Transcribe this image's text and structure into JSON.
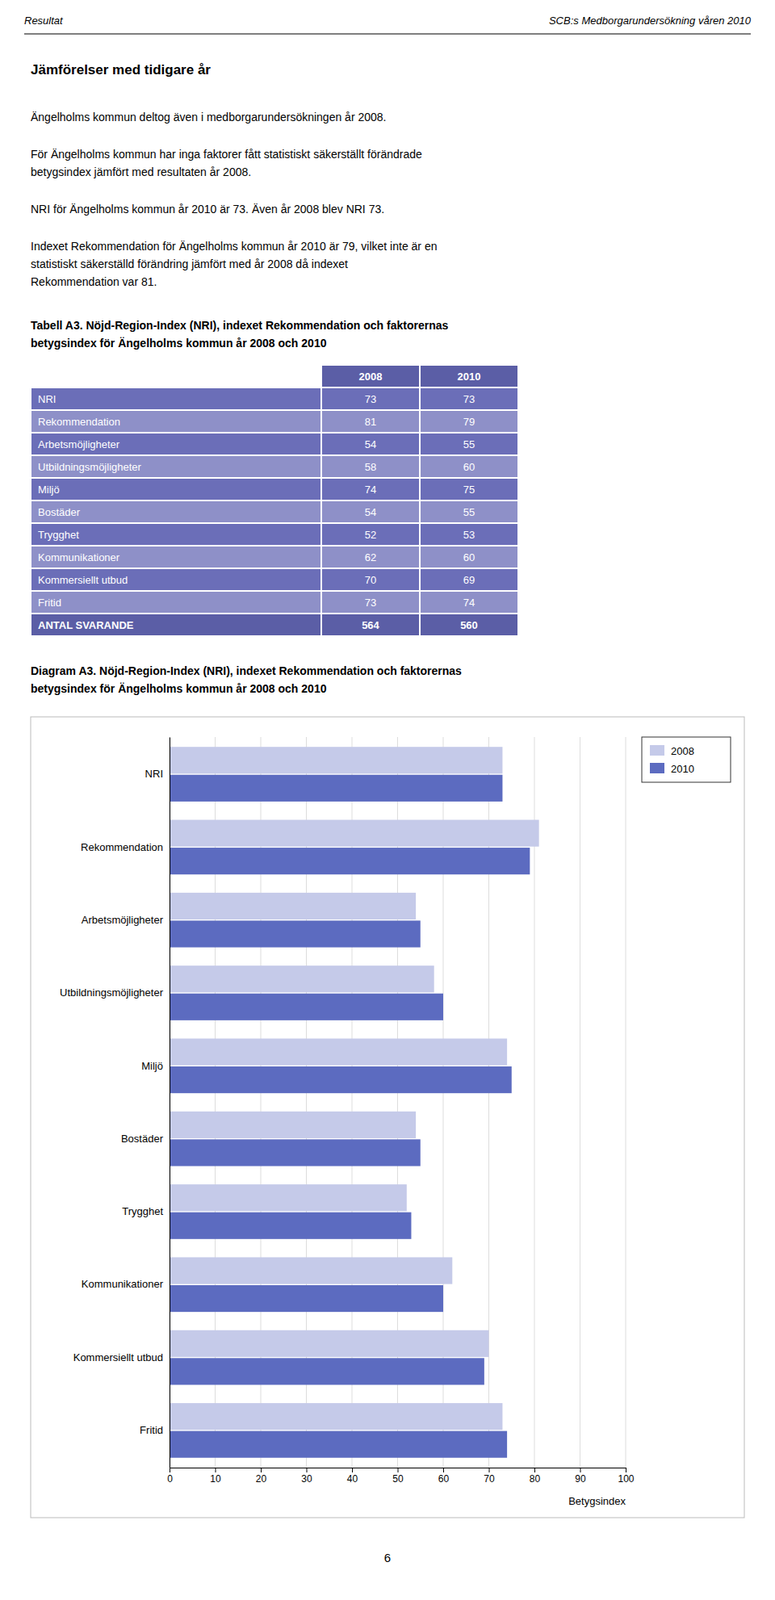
{
  "page": {
    "background": "#ffffff",
    "header_left": "Resultat",
    "header_right": "SCB:s Medborgarundersökning våren 2010",
    "section_title": "Jämförelser med tidigare år",
    "paragraphs": [
      [
        "Ängelholms kommun deltog även i medborgarundersökningen år 2008."
      ],
      [
        "För Ängelholms kommun har inga faktorer fått statistiskt säkerställt förändrade",
        "betygsindex jämfört med resultaten år 2008."
      ],
      [
        "NRI för Ängelholms kommun år 2010 är 73. Även år 2008 blev NRI 73."
      ],
      [
        "Indexet Rekommendation för Ängelholms kommun år 2010 är 79, vilket inte är en",
        "statistiskt säkerställd förändring jämfört med år 2008 då indexet",
        "Rekommendation var 81."
      ]
    ],
    "page_number": "6"
  },
  "table": {
    "title": [
      "Tabell A3. Nöjd-Region-Index (NRI), indexet Rekommendation och faktorernas",
      "betygsindex för Ängelholms kommun år 2008 och 2010"
    ],
    "header_color": "#5b5ea6",
    "row_colors": [
      "#6b6eb8",
      "#8e90c8"
    ],
    "columns": [
      "2008",
      "2010"
    ],
    "rows": [
      {
        "label": "NRI",
        "values": [
          73,
          73
        ]
      },
      {
        "label": "Rekommendation",
        "values": [
          81,
          79
        ]
      },
      {
        "label": "Arbetsmöjligheter",
        "values": [
          54,
          55
        ]
      },
      {
        "label": "Utbildningsmöjligheter",
        "values": [
          58,
          60
        ]
      },
      {
        "label": "Miljö",
        "values": [
          74,
          75
        ]
      },
      {
        "label": "Bostäder",
        "values": [
          54,
          55
        ]
      },
      {
        "label": "Trygghet",
        "values": [
          52,
          53
        ]
      },
      {
        "label": "Kommunikationer",
        "values": [
          62,
          60
        ]
      },
      {
        "label": "Kommersiellt utbud",
        "values": [
          70,
          69
        ]
      },
      {
        "label": "Fritid",
        "values": [
          73,
          74
        ]
      }
    ],
    "total": {
      "label": "ANTAL SVARANDE",
      "values": [
        564,
        560
      ]
    }
  },
  "chart_data": {
    "type": "bar",
    "orientation": "horizontal",
    "title": [
      "Diagram A3. Nöjd-Region-Index (NRI), indexet Rekommendation och faktorernas",
      "betygsindex för Ängelholms kommun år 2008 och 2010"
    ],
    "categories": [
      "NRI",
      "Rekommendation",
      "Arbetsmöjligheter",
      "Utbildningsmöjligheter",
      "Miljö",
      "Bostäder",
      "Trygghet",
      "Kommunikationer",
      "Kommersiellt utbud",
      "Fritid"
    ],
    "series": [
      {
        "name": "2008",
        "color": "#c5cae9",
        "values": [
          73,
          81,
          54,
          58,
          74,
          54,
          52,
          62,
          70,
          73
        ]
      },
      {
        "name": "2010",
        "color": "#5c6bc0",
        "values": [
          73,
          79,
          55,
          60,
          75,
          55,
          53,
          60,
          69,
          74
        ]
      }
    ],
    "xlabel": "Betygsindex",
    "xlim": [
      0,
      100
    ],
    "xticks": [
      0,
      10,
      20,
      30,
      40,
      50,
      60,
      70,
      80,
      90,
      100
    ],
    "grid": true,
    "legend": "upper right"
  }
}
